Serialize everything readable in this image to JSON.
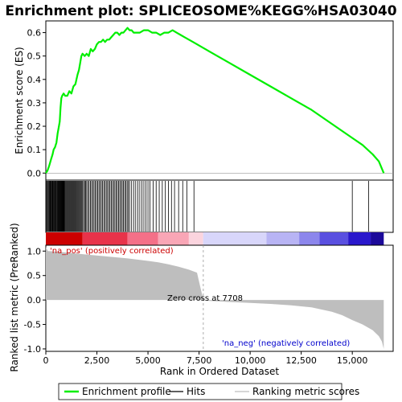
{
  "chart_data": {
    "type": "line",
    "title": "Enrichment plot: SPLICEOSOME%KEGG%HSA03040",
    "es_panel": {
      "ylabel": "Enrichment score (ES)",
      "ylim": [
        -0.03,
        0.65
      ],
      "yticks": [
        "0.0",
        "0.1",
        "0.2",
        "0.3",
        "0.4",
        "0.5",
        "0.6"
      ],
      "ytick_values": [
        0.0,
        0.1,
        0.2,
        0.3,
        0.4,
        0.5,
        0.6
      ],
      "series_color": "#00ee00",
      "profile": [
        [
          0,
          0.0
        ],
        [
          80,
          0.01
        ],
        [
          160,
          0.03
        ],
        [
          260,
          0.06
        ],
        [
          330,
          0.08
        ],
        [
          380,
          0.1
        ],
        [
          450,
          0.11
        ],
        [
          520,
          0.13
        ],
        [
          580,
          0.17
        ],
        [
          640,
          0.2
        ],
        [
          680,
          0.22
        ],
        [
          720,
          0.28
        ],
        [
          760,
          0.32
        ],
        [
          800,
          0.33
        ],
        [
          870,
          0.34
        ],
        [
          950,
          0.33
        ],
        [
          1050,
          0.33
        ],
        [
          1150,
          0.35
        ],
        [
          1250,
          0.34
        ],
        [
          1350,
          0.37
        ],
        [
          1450,
          0.38
        ],
        [
          1550,
          0.42
        ],
        [
          1620,
          0.44
        ],
        [
          1680,
          0.47
        ],
        [
          1740,
          0.5
        ],
        [
          1800,
          0.51
        ],
        [
          1900,
          0.5
        ],
        [
          2000,
          0.51
        ],
        [
          2100,
          0.5
        ],
        [
          2200,
          0.53
        ],
        [
          2300,
          0.52
        ],
        [
          2400,
          0.53
        ],
        [
          2500,
          0.55
        ],
        [
          2600,
          0.56
        ],
        [
          2700,
          0.56
        ],
        [
          2800,
          0.57
        ],
        [
          2900,
          0.56
        ],
        [
          3000,
          0.57
        ],
        [
          3100,
          0.57
        ],
        [
          3200,
          0.58
        ],
        [
          3300,
          0.59
        ],
        [
          3400,
          0.6
        ],
        [
          3500,
          0.6
        ],
        [
          3600,
          0.59
        ],
        [
          3700,
          0.6
        ],
        [
          3800,
          0.6
        ],
        [
          3900,
          0.61
        ],
        [
          4000,
          0.62
        ],
        [
          4100,
          0.61
        ],
        [
          4200,
          0.61
        ],
        [
          4300,
          0.6
        ],
        [
          4400,
          0.6
        ],
        [
          4600,
          0.6
        ],
        [
          4800,
          0.61
        ],
        [
          5000,
          0.61
        ],
        [
          5200,
          0.6
        ],
        [
          5400,
          0.6
        ],
        [
          5600,
          0.59
        ],
        [
          5800,
          0.6
        ],
        [
          6000,
          0.6
        ],
        [
          6200,
          0.61
        ],
        [
          6400,
          0.6
        ],
        [
          6600,
          0.59
        ],
        [
          6800,
          0.58
        ],
        [
          7000,
          0.57
        ],
        [
          7200,
          0.56
        ],
        [
          7400,
          0.55
        ],
        [
          8000,
          0.52
        ],
        [
          9000,
          0.47
        ],
        [
          10000,
          0.42
        ],
        [
          11000,
          0.37
        ],
        [
          12000,
          0.32
        ],
        [
          13000,
          0.27
        ],
        [
          14000,
          0.21
        ],
        [
          15000,
          0.15
        ],
        [
          15500,
          0.12
        ],
        [
          16000,
          0.08
        ],
        [
          16300,
          0.05
        ],
        [
          16540,
          0.0
        ]
      ]
    },
    "hits": {
      "color": "#000000",
      "x_ranks": [
        20,
        60,
        100,
        140,
        170,
        200,
        230,
        260,
        290,
        320,
        350,
        380,
        410,
        440,
        470,
        500,
        530,
        560,
        590,
        610,
        630,
        650,
        670,
        690,
        710,
        730,
        750,
        770,
        790,
        810,
        830,
        850,
        870,
        900,
        930,
        960,
        1000,
        1040,
        1080,
        1120,
        1160,
        1200,
        1240,
        1280,
        1320,
        1360,
        1400,
        1440,
        1480,
        1520,
        1560,
        1600,
        1640,
        1680,
        1720,
        1760,
        1800,
        1850,
        1900,
        1950,
        2000,
        2060,
        2120,
        2180,
        2240,
        2300,
        2360,
        2420,
        2480,
        2540,
        2600,
        2660,
        2720,
        2780,
        2840,
        2900,
        2960,
        3020,
        3080,
        3140,
        3200,
        3260,
        3320,
        3380,
        3440,
        3500,
        3560,
        3620,
        3680,
        3740,
        3800,
        3860,
        3920,
        3980,
        4040,
        4100,
        4200,
        4300,
        4400,
        4500,
        4600,
        4700,
        4800,
        4900,
        5000,
        5100,
        5250,
        5400,
        5550,
        5700,
        5850,
        6000,
        6150,
        6300,
        6500,
        6700,
        6900,
        7250,
        15000,
        15800
      ]
    },
    "ranked_panel": {
      "ylabel": "Ranked list metric (PreRanked)",
      "xlabel": "Rank in Ordered Dataset",
      "ylim": [
        -1.05,
        1.12
      ],
      "yticks": [
        "1.0",
        "0.5",
        "0.0",
        "-0.5",
        "-1.0"
      ],
      "ytick_values": [
        1.0,
        0.5,
        0.0,
        -0.5,
        -1.0
      ],
      "xlim": [
        0,
        17000
      ],
      "xticks": [
        "0",
        "2,500",
        "5,000",
        "7,500",
        "10,000",
        "12,500",
        "15,000"
      ],
      "xtick_values": [
        0,
        2500,
        5000,
        7500,
        10000,
        12500,
        15000
      ],
      "n_genes": 16540,
      "fill_color": "#bebebe",
      "metric_profile": [
        [
          0,
          1.08
        ],
        [
          100,
          1.0
        ],
        [
          500,
          0.99
        ],
        [
          1000,
          0.97
        ],
        [
          2000,
          0.93
        ],
        [
          3000,
          0.89
        ],
        [
          4000,
          0.85
        ],
        [
          5000,
          0.8
        ],
        [
          5500,
          0.77
        ],
        [
          6000,
          0.73
        ],
        [
          6500,
          0.68
        ],
        [
          7000,
          0.62
        ],
        [
          7400,
          0.56
        ],
        [
          7708,
          0.0
        ],
        [
          8000,
          -0.02
        ],
        [
          9000,
          -0.04
        ],
        [
          10000,
          -0.06
        ],
        [
          11000,
          -0.08
        ],
        [
          12000,
          -0.11
        ],
        [
          13000,
          -0.15
        ],
        [
          14000,
          -0.24
        ],
        [
          14500,
          -0.31
        ],
        [
          15000,
          -0.41
        ],
        [
          15500,
          -0.5
        ],
        [
          16000,
          -0.62
        ],
        [
          16300,
          -0.74
        ],
        [
          16450,
          -0.85
        ],
        [
          16540,
          -1.0
        ]
      ],
      "zero_cross_label": "Zero cross at 7708",
      "zero_cross_rank": 7708,
      "pos_label": "'na_pos' (positively correlated)",
      "neg_label": "'na_neg' (negatively correlated)",
      "pos_label_color": "#cc0000",
      "neg_label_color": "#0000cc"
    },
    "heatmap_bar": {
      "segments": [
        {
          "from": 0,
          "to": 1800,
          "color": "#cc0000"
        },
        {
          "from": 1800,
          "to": 4000,
          "color": "#e8334a"
        },
        {
          "from": 4000,
          "to": 5500,
          "color": "#f47088"
        },
        {
          "from": 5500,
          "to": 7000,
          "color": "#f9a6b6"
        },
        {
          "from": 7000,
          "to": 7700,
          "color": "#fbd4de"
        },
        {
          "from": 7700,
          "to": 10800,
          "color": "#d8d6fa"
        },
        {
          "from": 10800,
          "to": 12400,
          "color": "#b8b4f4"
        },
        {
          "from": 12400,
          "to": 13400,
          "color": "#8c86ec"
        },
        {
          "from": 13400,
          "to": 14800,
          "color": "#5a50e0"
        },
        {
          "from": 14800,
          "to": 15900,
          "color": "#2a18cc"
        },
        {
          "from": 15900,
          "to": 16540,
          "color": "#1c0a9a"
        }
      ]
    },
    "legend": {
      "placement": "bottom",
      "entries": [
        {
          "label": "Enrichment profile",
          "color": "#00ee00"
        },
        {
          "label": "Hits",
          "color": "#000000"
        },
        {
          "label": "Ranking metric scores",
          "color": "#bebebe"
        }
      ]
    }
  }
}
